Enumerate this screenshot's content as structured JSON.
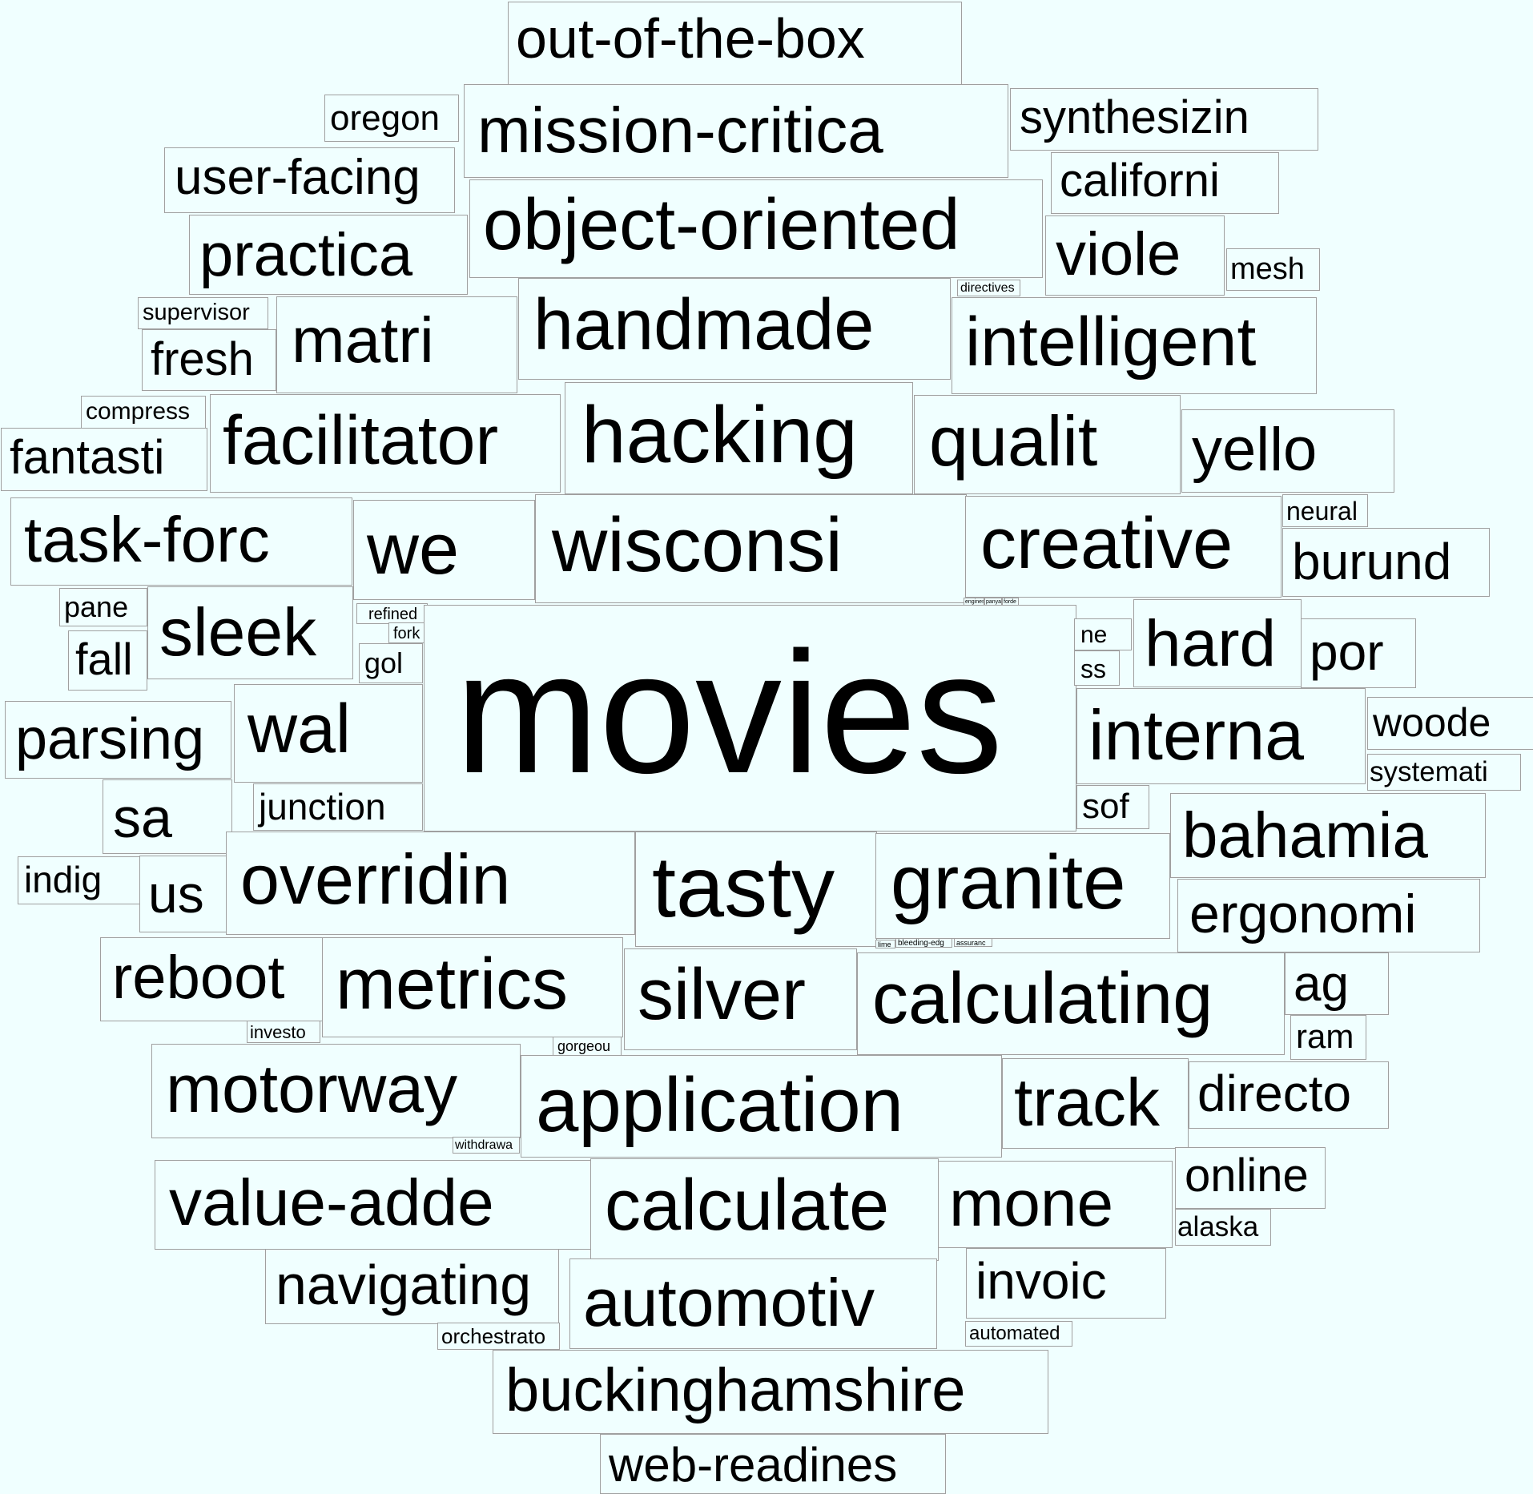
{
  "words": [
    "out-of-the-box",
    "oregon",
    "mission-critica",
    "synthesizin",
    "user-facing",
    "object-oriented",
    "californi",
    "practica",
    "viole",
    "mesh",
    "directives",
    "supervisor",
    "matri",
    "handmade",
    "intelligent",
    "fresh",
    "compress",
    "facilitator",
    "hacking",
    "qualit",
    "yello",
    "fantasti",
    "task-forc",
    "we",
    "wisconsi",
    "creative",
    "neural",
    "burund",
    "pane",
    "sleek",
    "refined",
    "fork",
    "engines",
    "panya",
    "forde",
    "hard",
    "por",
    "fall",
    "gol",
    "movies",
    "ne",
    "ss",
    "parsing",
    "wal",
    "interna",
    "woode",
    "systemati",
    "sa",
    "junction",
    "sof",
    "bahamia",
    "indig",
    "us",
    "overridin",
    "tasty",
    "granite",
    "ergonomi",
    "lime",
    "bleeding-edg",
    "assuranc",
    "reboot",
    "metrics",
    "silver",
    "calculating",
    "ag",
    "investo",
    "gorgeou",
    "ram",
    "motorway",
    "application",
    "track",
    "directo",
    "withdrawa",
    "value-adde",
    "calculate",
    "mone",
    "online",
    "alaska",
    "navigating",
    "automotiv",
    "invoic",
    "orchestrato",
    "automated",
    "buckinghamshire",
    "web-readines"
  ]
}
